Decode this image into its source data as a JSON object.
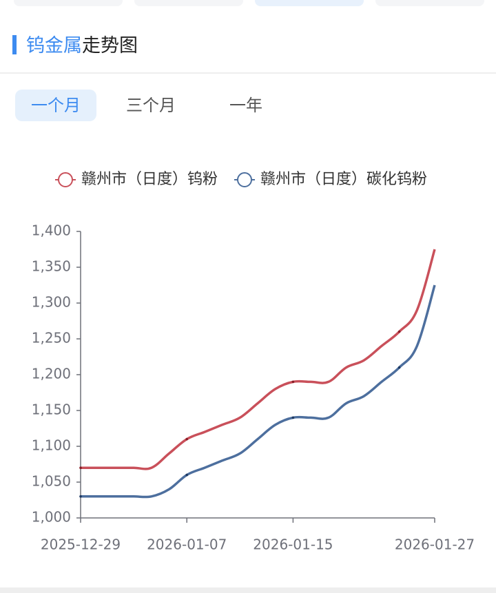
{
  "header": {
    "title_highlight": "钨金属",
    "title_rest": "走势图"
  },
  "period_tabs": [
    "一个月",
    "三个月",
    "一年"
  ],
  "chart_data": {
    "type": "line",
    "categories": [
      "2025-12-29",
      null,
      null,
      null,
      null,
      null,
      "2026-01-07",
      null,
      null,
      null,
      null,
      null,
      "2026-01-15",
      null,
      null,
      null,
      null,
      null,
      null,
      null,
      "2026-01-27"
    ],
    "series": [
      {
        "name": "赣州市（日度）钨粉",
        "color": "#c9505a",
        "values": [
          1070,
          1070,
          1070,
          1070,
          1070,
          1090,
          1110,
          1120,
          1130,
          1140,
          1160,
          1180,
          1190,
          1190,
          1190,
          1210,
          1220,
          1240,
          1260,
          1290,
          1375
        ]
      },
      {
        "name": "赣州市（日度）碳化钨粉",
        "color": "#4d6f9e",
        "values": [
          1030,
          1030,
          1030,
          1030,
          1030,
          1040,
          1060,
          1070,
          1080,
          1090,
          1110,
          1130,
          1140,
          1140,
          1140,
          1160,
          1170,
          1190,
          1210,
          1240,
          1325
        ]
      }
    ],
    "ylim": [
      1000,
      1400
    ],
    "yticks": [
      {
        "value": 1000,
        "label": "1,000"
      },
      {
        "value": 1050,
        "label": "1,050"
      },
      {
        "value": 1100,
        "label": "1,100"
      },
      {
        "value": 1150,
        "label": "1,150"
      },
      {
        "value": 1200,
        "label": "1,200"
      },
      {
        "value": 1250,
        "label": "1,250"
      },
      {
        "value": 1300,
        "label": "1,300"
      },
      {
        "value": 1350,
        "label": "1,350"
      },
      {
        "value": 1400,
        "label": "1,400"
      }
    ],
    "legend": "top"
  }
}
